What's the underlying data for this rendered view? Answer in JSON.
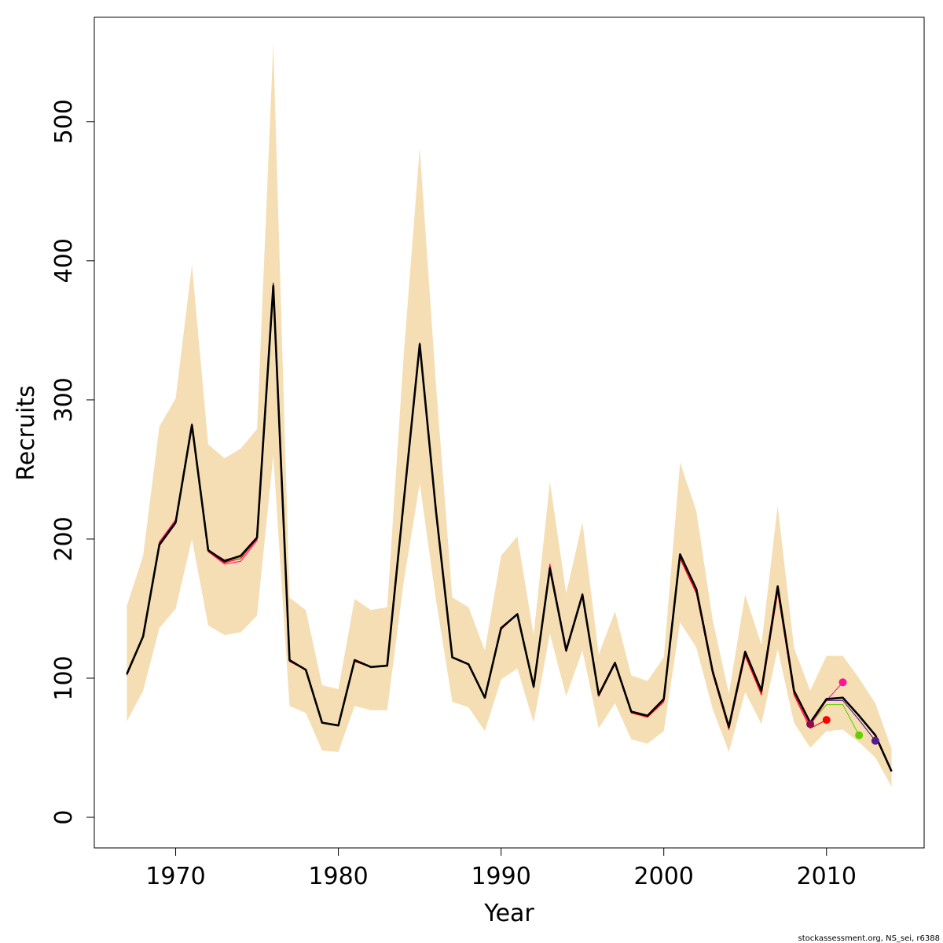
{
  "chart_data": {
    "type": "line",
    "title": "",
    "xlabel": "Year",
    "ylabel": "Recruits",
    "xlim": [
      1965,
      2016
    ],
    "ylim": [
      -22,
      575
    ],
    "xticks": [
      1970,
      1980,
      1990,
      2000,
      2010
    ],
    "yticks": [
      0,
      100,
      200,
      300,
      400,
      500
    ],
    "grid": false,
    "credit": "stockassessment.org, NS_sei, r6388",
    "colors": {
      "band": "#f5deb3",
      "main": "#000000",
      "retro1": "#ff0000",
      "retro2": "#ff1493",
      "retro3": "#66cd00",
      "retro4": "#551a8b",
      "retro5": "#8b0a50"
    },
    "confidence_band": {
      "x": [
        1967,
        1968,
        1969,
        1970,
        1971,
        1972,
        1973,
        1974,
        1975,
        1976,
        1977,
        1978,
        1979,
        1980,
        1981,
        1982,
        1983,
        1984,
        1985,
        1986,
        1987,
        1988,
        1989,
        1990,
        1991,
        1992,
        1993,
        1994,
        1995,
        1996,
        1997,
        1998,
        1999,
        2000,
        2001,
        2002,
        2003,
        2004,
        2005,
        2006,
        2007,
        2008,
        2009,
        2010,
        2011,
        2012,
        2013,
        2014
      ],
      "upper": [
        152,
        188,
        281,
        301,
        397,
        268,
        258,
        265,
        279,
        556,
        158,
        149,
        95,
        92,
        157,
        149,
        151,
        330,
        481,
        311,
        158,
        151,
        120,
        188,
        202,
        131,
        241,
        161,
        212,
        117,
        148,
        102,
        98,
        115,
        255,
        220,
        142,
        89,
        160,
        124,
        224,
        122,
        91,
        116,
        116,
        100,
        82,
        49
      ],
      "lower": [
        69,
        91,
        136,
        150,
        200,
        138,
        131,
        133,
        145,
        260,
        80,
        75,
        48,
        47,
        80,
        77,
        77,
        168,
        240,
        156,
        83,
        79,
        62,
        99,
        107,
        68,
        132,
        87,
        120,
        64,
        82,
        56,
        53,
        62,
        140,
        122,
        78,
        47,
        90,
        67,
        121,
        68,
        50,
        62,
        63,
        54,
        43,
        22
      ]
    },
    "series": [
      {
        "name": "",
        "color": "#000000",
        "x": [
          1967,
          1968,
          1969,
          1970,
          1971,
          1972,
          1973,
          1974,
          1975,
          1976,
          1977,
          1978,
          1979,
          1980,
          1981,
          1982,
          1983,
          1984,
          1985,
          1986,
          1987,
          1988,
          1989,
          1990,
          1991,
          1992,
          1993,
          1994,
          1995,
          1996,
          1997,
          1998,
          1999,
          2000,
          2001,
          2002,
          2003,
          2004,
          2005,
          2006,
          2007,
          2008,
          2009,
          2010,
          2011,
          2012,
          2013,
          2014
        ],
        "values": [
          103,
          130,
          196,
          212,
          282,
          192,
          184,
          188,
          201,
          382,
          113,
          106,
          68,
          66,
          113,
          108,
          109,
          225,
          340,
          220,
          115,
          110,
          86,
          136,
          146,
          94,
          179,
          120,
          160,
          88,
          111,
          76,
          73,
          85,
          189,
          164,
          105,
          65,
          119,
          91,
          166,
          91,
          68,
          85,
          86,
          73,
          59,
          33
        ]
      },
      {
        "name": "",
        "color": "#ff0000",
        "x": [
          1967,
          1968,
          1969,
          1970,
          1971,
          1972,
          1973,
          1974,
          1975,
          1976,
          1977,
          1978,
          1979,
          1980,
          1981,
          1982,
          1983,
          1984,
          1985,
          1986,
          1987,
          1988,
          1989,
          1990,
          1991,
          1992,
          1993,
          1994,
          1995,
          1996,
          1997,
          1998,
          1999,
          2000,
          2001,
          2002,
          2003,
          2004,
          2005,
          2006,
          2007,
          2008,
          2009,
          2010
        ],
        "values": [
          103,
          130,
          197,
          213,
          282,
          191,
          183,
          186,
          200,
          378,
          112,
          106,
          68,
          66,
          112,
          108,
          109,
          223,
          338,
          219,
          115,
          110,
          86,
          135,
          146,
          93,
          181,
          119,
          160,
          87,
          110,
          75,
          72,
          83,
          186,
          161,
          103,
          63,
          116,
          88,
          162,
          88,
          64,
          70
        ]
      },
      {
        "name": "",
        "color": "#ff1493",
        "x": [
          1967,
          1968,
          1969,
          1970,
          1971,
          1972,
          1973,
          1974,
          1975,
          1976,
          1977,
          1978,
          1979,
          1980,
          1981,
          1982,
          1983,
          1984,
          1985,
          1986,
          1987,
          1988,
          1989,
          1990,
          1991,
          1992,
          1993,
          1994,
          1995,
          1996,
          1997,
          1998,
          1999,
          2000,
          2001,
          2002,
          2003,
          2004,
          2005,
          2006,
          2007,
          2008,
          2009,
          2010,
          2011
        ],
        "values": [
          103,
          130,
          198,
          214,
          283,
          191,
          182,
          184,
          199,
          380,
          112,
          106,
          68,
          66,
          112,
          108,
          109,
          224,
          339,
          219,
          115,
          110,
          86,
          135,
          146,
          94,
          182,
          121,
          161,
          87,
          110,
          75,
          72,
          84,
          187,
          162,
          104,
          64,
          117,
          89,
          163,
          89,
          66,
          84,
          97
        ]
      },
      {
        "name": "",
        "color": "#66cd00",
        "x": [
          1967,
          1968,
          1969,
          1970,
          1971,
          1972,
          1973,
          1974,
          1975,
          1976,
          1977,
          1978,
          1979,
          1980,
          1981,
          1982,
          1983,
          1984,
          1985,
          1986,
          1987,
          1988,
          1989,
          1990,
          1991,
          1992,
          1993,
          1994,
          1995,
          1996,
          1997,
          1998,
          1999,
          2000,
          2001,
          2002,
          2003,
          2004,
          2005,
          2006,
          2007,
          2008,
          2009,
          2010,
          2011,
          2012
        ],
        "values": [
          103,
          130,
          196,
          212,
          282,
          192,
          184,
          187,
          201,
          381,
          113,
          106,
          68,
          66,
          113,
          108,
          109,
          225,
          340,
          220,
          115,
          110,
          86,
          136,
          146,
          94,
          177,
          119,
          159,
          88,
          111,
          76,
          73,
          85,
          188,
          163,
          105,
          65,
          118,
          90,
          165,
          90,
          67,
          81,
          81,
          59
        ]
      },
      {
        "name": "",
        "color": "#551a8b",
        "x": [
          1967,
          1968,
          1969,
          1970,
          1971,
          1972,
          1973,
          1974,
          1975,
          1976,
          1977,
          1978,
          1979,
          1980,
          1981,
          1982,
          1983,
          1984,
          1985,
          1986,
          1987,
          1988,
          1989,
          1990,
          1991,
          1992,
          1993,
          1994,
          1995,
          1996,
          1997,
          1998,
          1999,
          2000,
          2001,
          2002,
          2003,
          2004,
          2005,
          2006,
          2007,
          2008,
          2009,
          2010,
          2011,
          2012,
          2013
        ],
        "values": [
          103,
          130,
          196,
          212,
          282,
          192,
          184,
          188,
          201,
          384,
          113,
          106,
          68,
          66,
          113,
          108,
          109,
          226,
          341,
          221,
          115,
          110,
          86,
          136,
          146,
          94,
          178,
          120,
          160,
          88,
          111,
          76,
          73,
          85,
          189,
          164,
          105,
          65,
          119,
          91,
          166,
          91,
          68,
          84,
          84,
          70,
          55
        ]
      },
      {
        "name": "",
        "color": "#8b0a50",
        "x": [
          1967,
          1968,
          1969,
          1970,
          1971,
          1972,
          1973,
          1974,
          1975,
          1976,
          1977,
          1978,
          1979,
          1980,
          1981,
          1982,
          1983,
          1984,
          1985,
          1986,
          1987,
          1988,
          1989,
          1990,
          1991,
          1992,
          1993,
          1994,
          1995,
          1996,
          1997,
          1998,
          1999,
          2000,
          2001,
          2002,
          2003,
          2004,
          2005,
          2006,
          2007,
          2008,
          2009
        ],
        "values": [
          102,
          130,
          195,
          211,
          281,
          192,
          185,
          188,
          201,
          384,
          113,
          106,
          68,
          66,
          113,
          108,
          109,
          225,
          341,
          221,
          115,
          110,
          86,
          136,
          146,
          94,
          179,
          120,
          160,
          88,
          111,
          76,
          73,
          85,
          189,
          164,
          105,
          65,
          118,
          91,
          166,
          91,
          67
        ]
      }
    ],
    "end_points": [
      {
        "x": 2009,
        "y": 67,
        "color": "#8b0a50"
      },
      {
        "x": 2010,
        "y": 70,
        "color": "#ff0000"
      },
      {
        "x": 2011,
        "y": 97,
        "color": "#ff1493"
      },
      {
        "x": 2012,
        "y": 59,
        "color": "#66cd00"
      },
      {
        "x": 2013,
        "y": 55,
        "color": "#551a8b"
      }
    ]
  }
}
